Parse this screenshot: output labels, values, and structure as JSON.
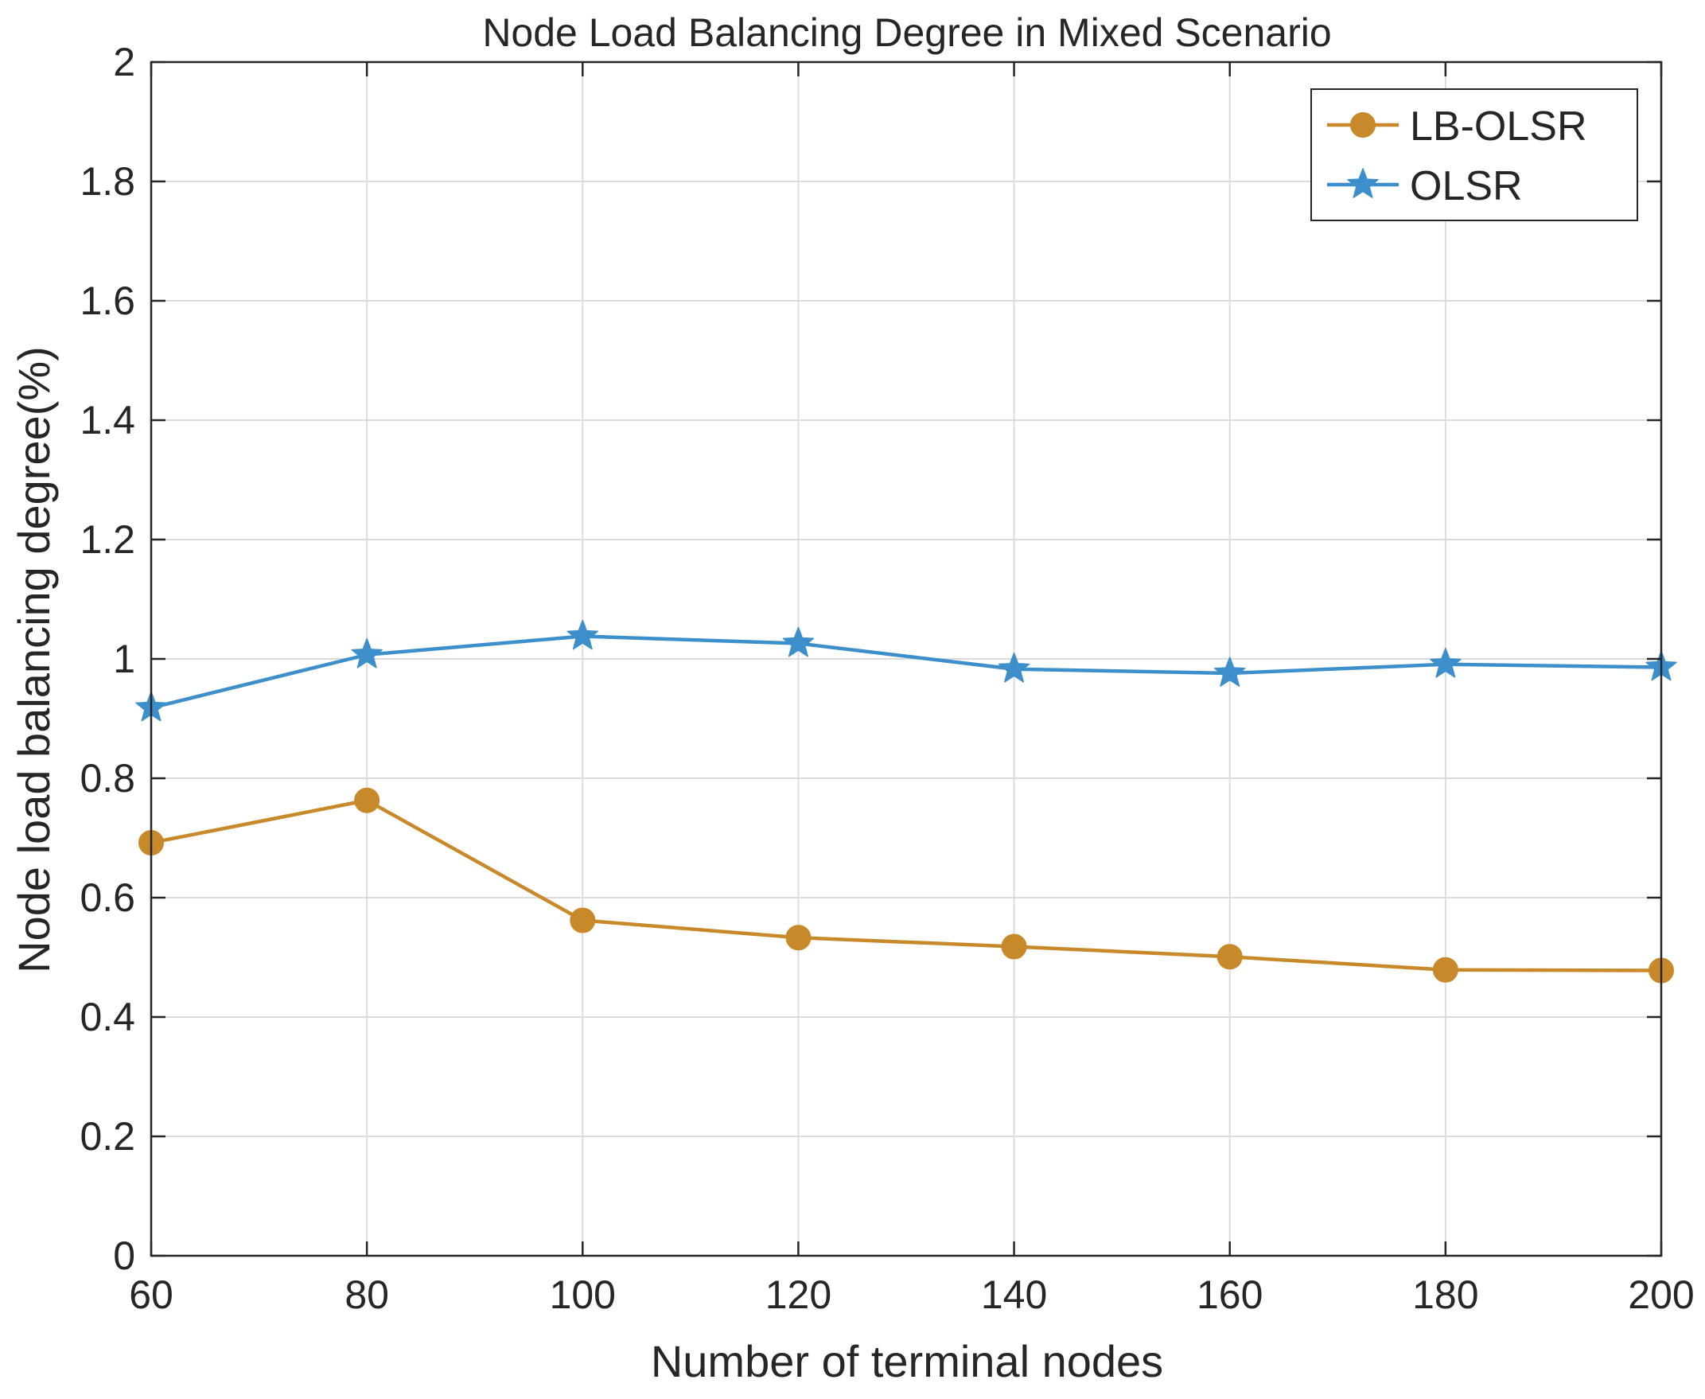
{
  "chart_data": {
    "type": "line",
    "title": "Node Load Balancing Degree in Mixed Scenario",
    "xlabel": "Number of terminal nodes",
    "ylabel": "Node load balancing degree(%)",
    "x": [
      60,
      80,
      100,
      120,
      140,
      160,
      180,
      200
    ],
    "xlim": [
      60,
      200
    ],
    "ylim": [
      0,
      2
    ],
    "xticks": [
      60,
      80,
      100,
      120,
      140,
      160,
      180,
      200
    ],
    "yticks": [
      0,
      0.2,
      0.4,
      0.6,
      0.8,
      1,
      1.2,
      1.4,
      1.6,
      1.8,
      2
    ],
    "xtick_labels": [
      "60",
      "80",
      "100",
      "120",
      "140",
      "160",
      "180",
      "200"
    ],
    "ytick_labels": [
      "0",
      "0.2",
      "0.4",
      "0.6",
      "0.8",
      "1",
      "1.2",
      "1.4",
      "1.6",
      "1.8",
      "2"
    ],
    "grid": true,
    "legend_position": "top-right",
    "series": [
      {
        "name": "LB-OLSR",
        "marker": "circle",
        "color": "#C8892A",
        "values": [
          0.692,
          0.763,
          0.562,
          0.533,
          0.518,
          0.501,
          0.479,
          0.478
        ]
      },
      {
        "name": "OLSR",
        "marker": "star",
        "color": "#3D8FCB",
        "values": [
          0.918,
          1.007,
          1.038,
          1.026,
          0.983,
          0.976,
          0.991,
          0.986
        ]
      }
    ]
  }
}
